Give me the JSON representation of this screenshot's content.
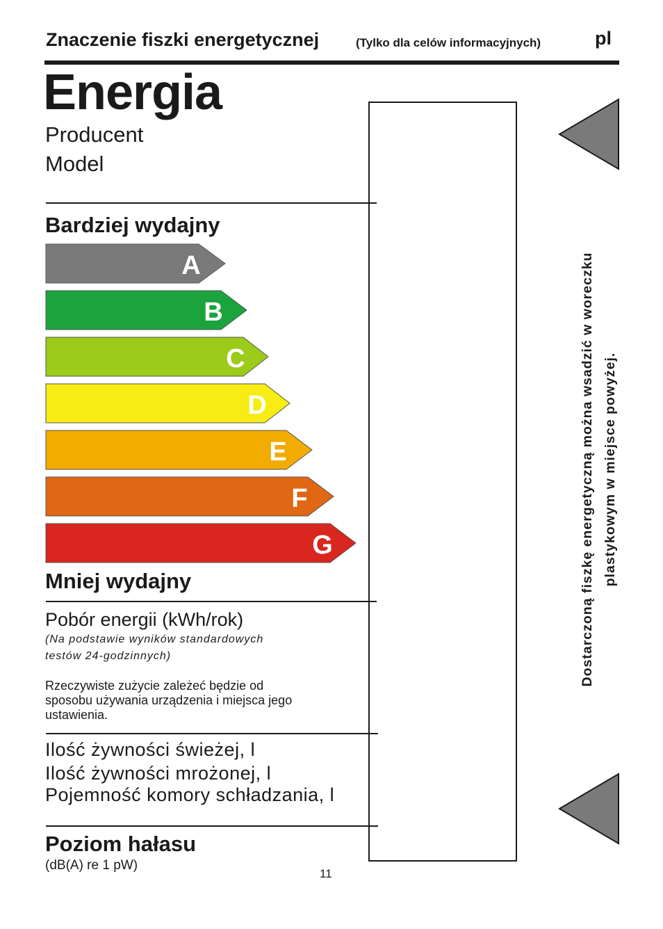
{
  "header": {
    "title": "Znaczenie fiszki energetycznej",
    "subtitle": "(Tylko dla celów informacyjnych)",
    "lang": "pl"
  },
  "label": {
    "title": "Energia",
    "manufacturer": "Producent",
    "model": "Model",
    "more_efficient": "Bardziej wydajny",
    "less_efficient": "Mniej wydajny",
    "classes": [
      {
        "letter": "A",
        "color": "#7a7a7a"
      },
      {
        "letter": "B",
        "color": "#1ba33e"
      },
      {
        "letter": "C",
        "color": "#9ccb1a"
      },
      {
        "letter": "D",
        "color": "#f7ec14"
      },
      {
        "letter": "E",
        "color": "#f2ab00"
      },
      {
        "letter": "F",
        "color": "#e06714"
      },
      {
        "letter": "G",
        "color": "#d9261e"
      }
    ],
    "consumption_title": "Pobór energii (kWh/rok)",
    "consumption_note_line1": "(Na podstawie wyników standardowych",
    "consumption_note_line2": "testów 24-godzinnych)",
    "actual_line1": "Rzeczywiste zużycie zależeć będzie od",
    "actual_line2": "sposobu używania urządzenia i miejsca jego",
    "actual_line3": "ustawienia.",
    "fresh_food": "Ilość żywności świeżej, l",
    "frozen_food": "Ilość żywności mrożonej, l",
    "chill_compartment": "Pojemność komory schładzania, l",
    "noise_title": "Poziom hałasu",
    "noise_unit": "(dB(A) re 1 pW)"
  },
  "side_note": {
    "line1": "Dostarczoną fiszkę energetyczną można wsadzić w woreczku",
    "line2": "plastykowym w miejsce powyżej."
  },
  "page_number": "11"
}
